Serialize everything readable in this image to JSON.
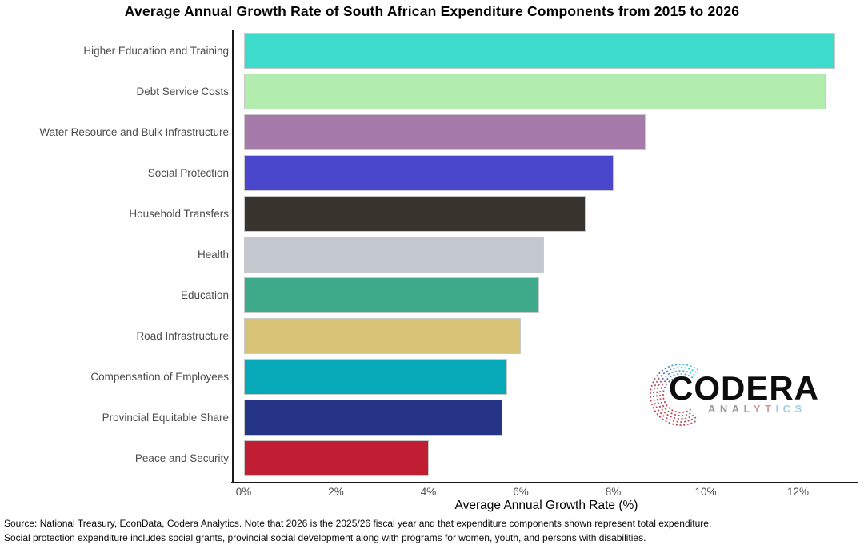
{
  "title": "Average Annual Growth Rate of South African Expenditure Components from 2015 to 2026",
  "chart_data": {
    "type": "bar",
    "orientation": "horizontal",
    "title": "Average Annual Growth Rate of South African Expenditure Components from 2015 to 2026",
    "categories": [
      "Higher Education and Training",
      "Debt Service Costs",
      "Water Resource and Bulk Infrastructure",
      "Social Protection",
      "Household Transfers",
      "Health",
      "Education",
      "Road Infrastructure",
      "Compensation of Employees",
      "Provincial Equitable Share",
      "Peace and Security"
    ],
    "values": [
      12.8,
      12.6,
      8.7,
      8.0,
      7.4,
      6.5,
      6.4,
      6.0,
      5.7,
      5.6,
      4.0
    ],
    "bar_colors": [
      "#3DDBCC",
      "#B2EDAF",
      "#A77BA9",
      "#4A47CD",
      "#3A342F",
      "#C2C8CE",
      "#3FAA8A",
      "#D7C276",
      "#05A9B8",
      "#263488",
      "#C01E32"
    ],
    "xlabel": "Average Annual Growth Rate (%)",
    "xlim": [
      0,
      13.2
    ],
    "xticks": [
      0,
      2,
      4,
      6,
      8,
      10,
      12
    ],
    "xtick_labels": [
      "0%",
      "2%",
      "4%",
      "6%",
      "8%",
      "10%",
      "12%"
    ],
    "grid": false,
    "legend_position": "none",
    "axis_color": "#1a1a1a",
    "label_color": "#4d4d4d"
  },
  "logo": {
    "brand": "CODERA",
    "subtext": "ANALYTICS",
    "analytics_segments": [
      {
        "text": "ANAL",
        "color": "#9b9b9b"
      },
      {
        "text": "YT",
        "color": "#cf9d99"
      },
      {
        "text": "ICS",
        "color": "#a4cfe2"
      }
    ],
    "arc_colors": {
      "top": "#43bfce",
      "mid": "#5575b8",
      "bottom": "#c53a44"
    }
  },
  "footer": {
    "line1": "Source: National Treasury, EconData, Codera Analytics. Note that 2026 is the 2025/26 fiscal year and that expenditure components shown represent total expenditure.",
    "line2": "Social protection expenditure includes social grants, provincial social development along with programs for women, youth, and persons with disabilities."
  }
}
